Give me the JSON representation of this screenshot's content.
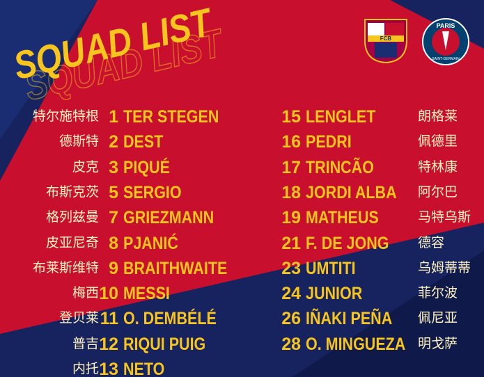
{
  "header": {
    "title": "SQUAD LIST",
    "logos": [
      "FCB",
      "PARIS",
      "SAINT-GERMAIN"
    ]
  },
  "left": [
    {
      "cn": "特尔施特根",
      "num": 1,
      "name": "TER STEGEN"
    },
    {
      "cn": "德斯特",
      "num": 2,
      "name": "DEST"
    },
    {
      "cn": "皮克",
      "num": 3,
      "name": "PIQUÉ"
    },
    {
      "cn": "布斯克茨",
      "num": 5,
      "name": "SERGIO"
    },
    {
      "cn": "格列兹曼",
      "num": 7,
      "name": "GRIEZMANN"
    },
    {
      "cn": "皮亚尼奇",
      "num": 8,
      "name": "PJANIĆ"
    },
    {
      "cn": "布莱斯维特",
      "num": 9,
      "name": "BRAITHWAITE"
    },
    {
      "cn": "梅西",
      "num": 10,
      "name": "MESSI"
    },
    {
      "cn": "登贝莱",
      "num": 11,
      "name": "O. DEMBÉLÉ"
    },
    {
      "cn": "普吉",
      "num": 12,
      "name": "RIQUI PUIG"
    },
    {
      "cn": "内托",
      "num": 13,
      "name": "NETO"
    }
  ],
  "right": [
    {
      "num": 15,
      "name": "LENGLET",
      "cn": "朗格莱"
    },
    {
      "num": 16,
      "name": "PEDRI",
      "cn": "佩德里"
    },
    {
      "num": 17,
      "name": "TRINCÃO",
      "cn": "特林康"
    },
    {
      "num": 18,
      "name": "JORDI ALBA",
      "cn": "阿尔巴"
    },
    {
      "num": 19,
      "name": "MATHEUS",
      "cn": "马特乌斯"
    },
    {
      "num": 21,
      "name": "F. DE JONG",
      "cn": "德容"
    },
    {
      "num": 23,
      "name": "UMTITI",
      "cn": "乌姆蒂蒂"
    },
    {
      "num": 24,
      "name": "JUNIOR",
      "cn": "菲尔波"
    },
    {
      "num": 26,
      "name": "IÑAKI PEÑA",
      "cn": "佩尼亚"
    },
    {
      "num": 28,
      "name": "O. MINGUEZA",
      "cn": "明戈萨"
    }
  ]
}
